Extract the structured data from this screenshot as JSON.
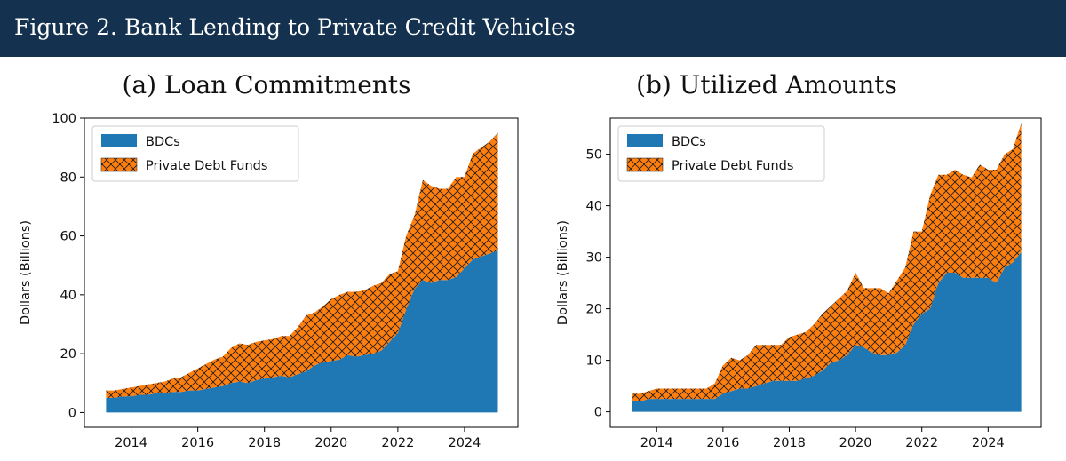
{
  "figure_title": "Figure 2. Bank Lending to Private Credit Vehicles",
  "colors": {
    "banner": "#14324f",
    "bdc": "#1f77b4",
    "pdf": "#ff7f0e",
    "hatch": "#1a1a1a"
  },
  "chart_data": [
    {
      "type": "area",
      "stacked": true,
      "title": "(a) Loan Commitments",
      "ylabel": "Dollars (Billions)",
      "xlim": [
        2012.6,
        2025.6
      ],
      "ylim": [
        -5,
        100
      ],
      "xticks": [
        2014,
        2016,
        2018,
        2020,
        2022,
        2024
      ],
      "yticks": [
        0,
        20,
        40,
        60,
        80,
        100
      ],
      "legend_position": "top-left",
      "x": [
        2013.25,
        2013.5,
        2013.75,
        2014,
        2014.25,
        2014.5,
        2014.75,
        2015,
        2015.25,
        2015.5,
        2015.75,
        2016,
        2016.25,
        2016.5,
        2016.75,
        2017,
        2017.25,
        2017.5,
        2017.75,
        2018,
        2018.25,
        2018.5,
        2018.75,
        2019,
        2019.25,
        2019.5,
        2019.75,
        2020,
        2020.25,
        2020.5,
        2020.75,
        2021,
        2021.25,
        2021.5,
        2021.75,
        2022,
        2022.25,
        2022.5,
        2022.75,
        2023,
        2023.25,
        2023.5,
        2023.75,
        2024,
        2024.25,
        2024.5,
        2024.75,
        2025
      ],
      "series": [
        {
          "name": "BDCs",
          "values": [
            5,
            5,
            5.5,
            5.5,
            6,
            6,
            6.5,
            6.5,
            7,
            7,
            7.5,
            7.5,
            8,
            8.5,
            9,
            10,
            10.5,
            10,
            11,
            11.5,
            12,
            12.5,
            12,
            13,
            14,
            16,
            17,
            17.5,
            18,
            19.5,
            19,
            19.5,
            20,
            21,
            24,
            27,
            35,
            42,
            45,
            44,
            45,
            45,
            46,
            49,
            52,
            53,
            54,
            55
          ]
        },
        {
          "name": "Private Debt Funds",
          "values": [
            2.5,
            2.5,
            2.5,
            3,
            3,
            3.5,
            3.5,
            4,
            4.5,
            5,
            6,
            7.5,
            8.5,
            9.5,
            10,
            12,
            13,
            13,
            13,
            13,
            13,
            13.5,
            14,
            16,
            19,
            18,
            19,
            21,
            22,
            21.5,
            22,
            22,
            23,
            23,
            23,
            21,
            25,
            25,
            34,
            33,
            31,
            31,
            34,
            31,
            36,
            37,
            38,
            40
          ]
        }
      ]
    },
    {
      "type": "area",
      "stacked": true,
      "title": "(b) Utilized Amounts",
      "ylabel": "Dollars (Billions)",
      "xlim": [
        2012.6,
        2025.6
      ],
      "ylim": [
        -3,
        57
      ],
      "xticks": [
        2014,
        2016,
        2018,
        2020,
        2022,
        2024
      ],
      "yticks": [
        0,
        10,
        20,
        30,
        40,
        50
      ],
      "legend_position": "top-left",
      "x": [
        2013.25,
        2013.5,
        2013.75,
        2014,
        2014.25,
        2014.5,
        2014.75,
        2015,
        2015.25,
        2015.5,
        2015.75,
        2016,
        2016.25,
        2016.5,
        2016.75,
        2017,
        2017.25,
        2017.5,
        2017.75,
        2018,
        2018.25,
        2018.5,
        2018.75,
        2019,
        2019.25,
        2019.5,
        2019.75,
        2020,
        2020.25,
        2020.5,
        2020.75,
        2021,
        2021.25,
        2021.5,
        2021.75,
        2022,
        2022.25,
        2022.5,
        2022.75,
        2023,
        2023.25,
        2023.5,
        2023.75,
        2024,
        2024.25,
        2024.5,
        2024.75,
        2025
      ],
      "series": [
        {
          "name": "BDCs",
          "values": [
            2,
            2,
            2.5,
            2.5,
            2.5,
            2.5,
            2.5,
            2.5,
            2.5,
            2.5,
            2.5,
            3.5,
            4,
            4.5,
            4.5,
            5,
            5.5,
            6,
            6,
            6,
            6,
            6.5,
            7,
            8,
            9.5,
            10,
            11,
            13,
            12.5,
            11.5,
            11,
            11,
            11.5,
            13,
            17,
            19,
            20,
            25,
            27,
            27,
            26,
            26,
            26,
            26,
            25,
            28,
            29,
            31
          ]
        },
        {
          "name": "Private Debt Funds",
          "values": [
            1.5,
            1.5,
            1.5,
            2,
            2,
            2,
            2,
            2,
            2,
            2,
            3,
            5.5,
            6.5,
            5.5,
            6.5,
            8,
            7.5,
            7,
            7,
            8.5,
            9,
            9,
            10,
            11,
            11,
            12,
            12.5,
            14,
            11.5,
            12.5,
            13,
            12,
            14,
            15,
            18,
            16,
            22,
            21,
            19,
            20,
            20,
            19.5,
            22,
            21,
            22,
            22,
            22,
            25
          ]
        }
      ]
    }
  ]
}
